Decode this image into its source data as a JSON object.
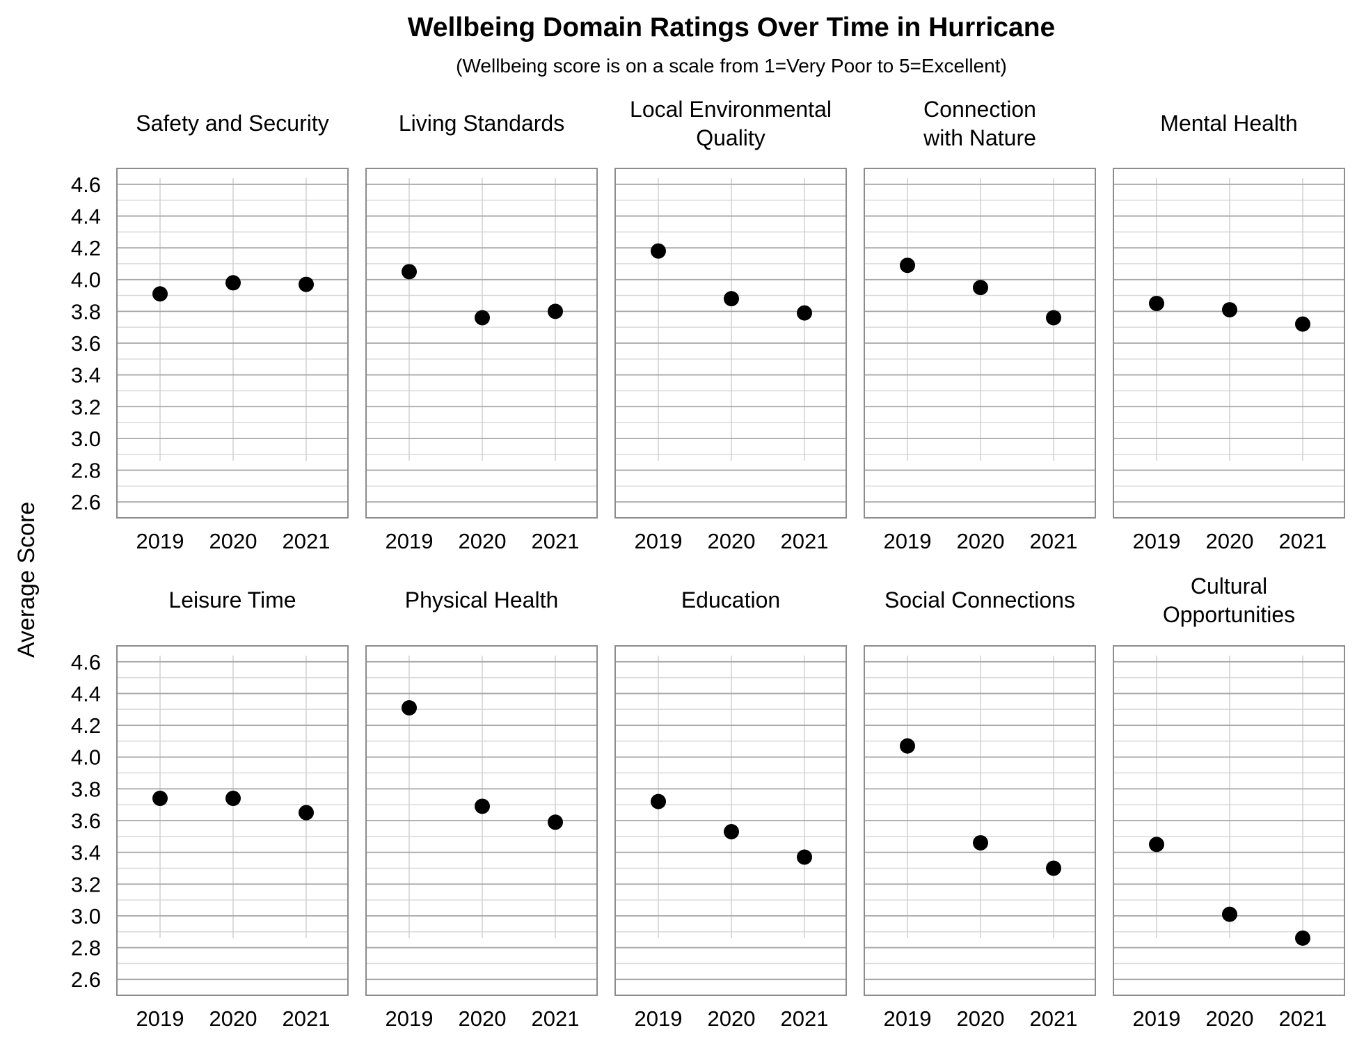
{
  "chart_data": {
    "type": "scatter",
    "title": "Wellbeing Domain Ratings Over Time in Hurricane",
    "subtitle": "(Wellbeing score is on a scale from 1=Very Poor to 5=Excellent)",
    "ylabel": "Average Score",
    "xlabel": "",
    "ylim": [
      2.5,
      4.7
    ],
    "yticks": [
      "2.6",
      "2.8",
      "3.0",
      "3.2",
      "3.4",
      "3.6",
      "3.8",
      "4.0",
      "4.2",
      "4.4",
      "4.6"
    ],
    "categories": [
      "2019",
      "2020",
      "2021"
    ],
    "grid": true,
    "marker_color": "#000000",
    "panels": [
      {
        "name": "Safety and Security",
        "title_lines": [
          "Safety and Security"
        ],
        "values": [
          3.91,
          3.98,
          3.97
        ]
      },
      {
        "name": "Living Standards",
        "title_lines": [
          "Living Standards"
        ],
        "values": [
          4.05,
          3.76,
          3.8
        ]
      },
      {
        "name": "Local Environmental Quality",
        "title_lines": [
          "Local Environmental",
          "Quality"
        ],
        "values": [
          4.18,
          3.88,
          3.79
        ]
      },
      {
        "name": "Connection with Nature",
        "title_lines": [
          "Connection",
          "with Nature"
        ],
        "values": [
          4.09,
          3.95,
          3.76
        ]
      },
      {
        "name": "Mental Health",
        "title_lines": [
          "Mental Health"
        ],
        "values": [
          3.85,
          3.81,
          3.72
        ]
      },
      {
        "name": "Leisure Time",
        "title_lines": [
          "Leisure Time"
        ],
        "values": [
          3.74,
          3.74,
          3.65
        ]
      },
      {
        "name": "Physical Health",
        "title_lines": [
          "Physical Health"
        ],
        "values": [
          4.31,
          3.69,
          3.59
        ]
      },
      {
        "name": "Education",
        "title_lines": [
          "Education"
        ],
        "values": [
          3.72,
          3.53,
          3.37
        ]
      },
      {
        "name": "Social Connections",
        "title_lines": [
          "Social Connections"
        ],
        "values": [
          4.07,
          3.46,
          3.3
        ]
      },
      {
        "name": "Cultural Opportunities",
        "title_lines": [
          "Cultural",
          "Opportunities"
        ],
        "values": [
          3.45,
          3.01,
          2.86
        ]
      }
    ]
  }
}
